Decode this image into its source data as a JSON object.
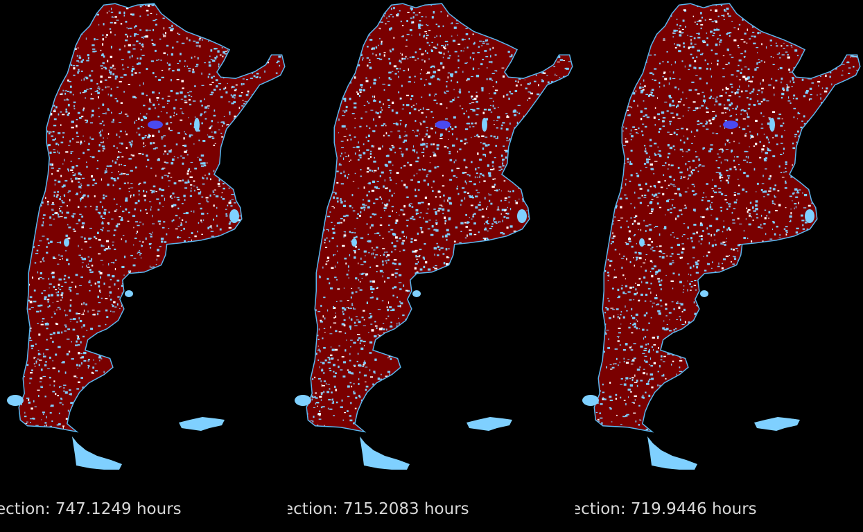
{
  "colors": {
    "background": "#000000",
    "land": "#7a0000",
    "water_speckle": "#7fd0ff",
    "lake": "#4a4af0",
    "coast": "#5ab8f0",
    "caption": "#d8d8d8"
  },
  "panels": [
    {
      "caption": "ection: 747.1249 hours"
    },
    {
      "caption": "ection: 715.2083 hours"
    },
    {
      "caption": "ection: 719.9446 hours"
    }
  ]
}
